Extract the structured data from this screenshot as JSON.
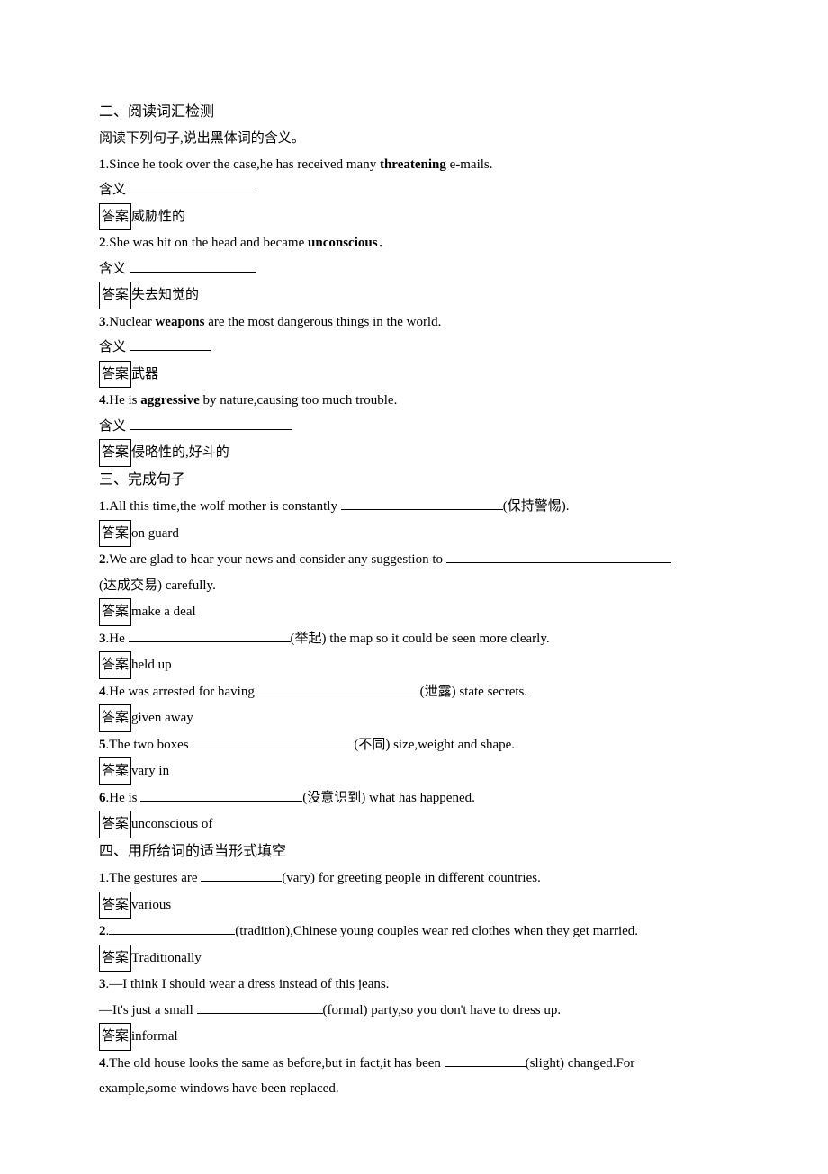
{
  "s2": {
    "heading": "二、阅读词汇检测",
    "instruction": "阅读下列句子,说出黑体词的含义。",
    "meaning_label": "含义 ",
    "answer_label": "答案",
    "items": [
      {
        "num": "1",
        "pre": ".Since he took over the case,he has received many ",
        "bold": "threatening",
        "post": " e-mails.",
        "answer": "威胁性的"
      },
      {
        "num": "2",
        "pre": ".She was hit on the head and became ",
        "bold": "unconscious",
        "post": "．",
        "answer": "失去知觉的"
      },
      {
        "num": "3",
        "pre": ".Nuclear ",
        "bold": "weapons",
        "post": " are the most dangerous things in the world.",
        "answer": "武器"
      },
      {
        "num": "4",
        "pre": ".He is ",
        "bold": "aggressive",
        "post": " by nature,causing too much trouble.",
        "answer": "侵略性的,好斗的"
      }
    ]
  },
  "s3": {
    "heading": "三、完成句子",
    "answer_label": "答案",
    "items": [
      {
        "num": "1",
        "pre": ".All this time,the wolf mother is constantly ",
        "hint": "(保持警惕).",
        "answer": "on guard",
        "blank": "long"
      },
      {
        "num": "2",
        "pre": ".We are glad to hear your news and consider any suggestion to ",
        "hint": "",
        "next_line": "(达成交易) carefully.",
        "answer": "make a deal",
        "blank": "xlong"
      },
      {
        "num": "3",
        "pre": ".He ",
        "hint": "(举起) the map so it could be seen more clearly.",
        "answer": "held up",
        "blank": "long"
      },
      {
        "num": "4",
        "pre": ".He was arrested for having ",
        "hint": "(泄露) state secrets.",
        "answer": "given away",
        "blank": "long"
      },
      {
        "num": "5",
        "pre": ".The two boxes ",
        "hint": "(不同) size,weight and shape.",
        "answer": "vary in",
        "blank": "long"
      },
      {
        "num": "6",
        "pre": ".He is ",
        "hint": "(没意识到) what has happened.",
        "answer": "unconscious of",
        "blank": "long"
      }
    ]
  },
  "s4": {
    "heading": "四、用所给词的适当形式填空",
    "answer_label": "答案",
    "items": [
      {
        "num": "1",
        "pre": ".The gestures are ",
        "hint": "(vary) for greeting people in different countries.",
        "answer": "various",
        "blank": "short"
      },
      {
        "num": "2",
        "pre": ".",
        "hint": "(tradition),Chinese young couples wear red clothes when they get married.",
        "answer": "Traditionally",
        "blank": "med"
      },
      {
        "num": "3",
        "line1": ".—I think I should wear a dress instead of this jeans.",
        "line2_pre": "—It's just a small ",
        "line2_hint": "(formal) party,so you don't have to dress up.",
        "answer": "informal",
        "blank": "med"
      },
      {
        "num": "4",
        "pre": ".The old house looks the same as before,but in fact,it has been ",
        "hint": "(slight) changed.For",
        "next_line": "example,some windows have been replaced.",
        "blank": "short"
      }
    ]
  }
}
